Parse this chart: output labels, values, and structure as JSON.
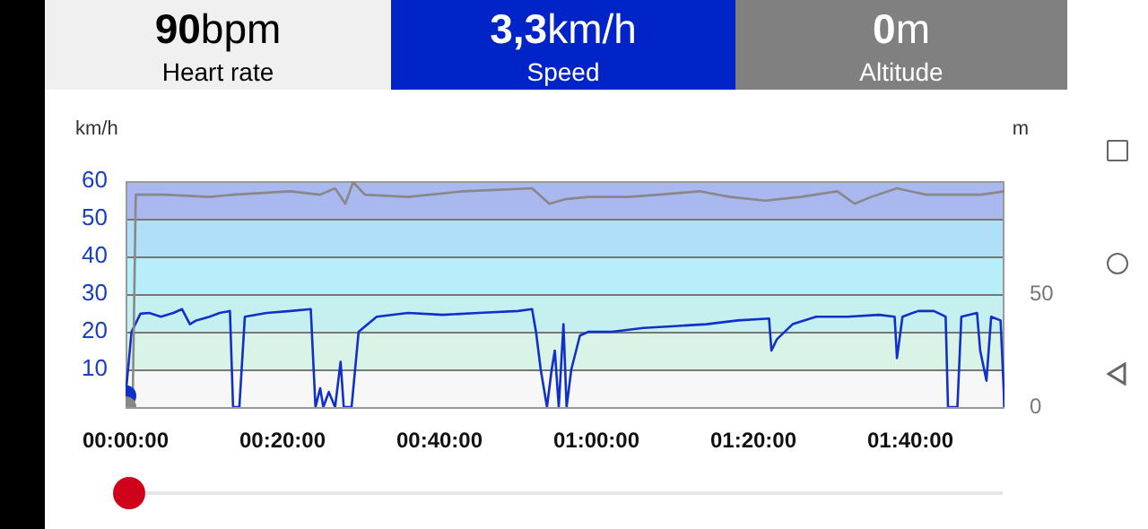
{
  "chart_data": [
    {
      "type": "other",
      "title": "Heart rate",
      "annotations": [
        "90bpm"
      ],
      "color": "#f0f0f0"
    },
    {
      "type": "other",
      "title": "Speed",
      "annotations": [
        "3,3km/h"
      ],
      "color": "#0024c8"
    },
    {
      "type": "other",
      "title": "Altitude",
      "annotations": [
        "0m"
      ],
      "color": "#808080"
    },
    {
      "type": "line",
      "ylabel": "km/h",
      "y2label": "m",
      "xlim": [
        0,
        112
      ],
      "xticks": [
        {
          "value": 0,
          "label": "00:00:00"
        },
        {
          "value": 20,
          "label": "00:20:00"
        },
        {
          "value": 40,
          "label": "00:40:00"
        },
        {
          "value": 60,
          "label": "01:00:00"
        },
        {
          "value": 80,
          "label": "01:20:00"
        },
        {
          "value": 100,
          "label": "01:40:00"
        }
      ],
      "ylim": [
        0,
        60
      ],
      "yticks": [
        10,
        20,
        30,
        40,
        50,
        60
      ],
      "y2lim": [
        0,
        100
      ],
      "y2ticks": [
        0,
        50
      ],
      "grid": "y",
      "legend": false,
      "bands": [
        {
          "axis": "y",
          "from": 0,
          "to": 10,
          "color": "#f7f7f7"
        },
        {
          "axis": "y",
          "from": 10,
          "to": 20,
          "color": "#d9f3e7"
        },
        {
          "axis": "y",
          "from": 20,
          "to": 30,
          "color": "#c6f0ef"
        },
        {
          "axis": "y",
          "from": 30,
          "to": 40,
          "color": "#b8eef9"
        },
        {
          "axis": "y",
          "from": 40,
          "to": 50,
          "color": "#b0e0f8"
        },
        {
          "axis": "y",
          "from": 50,
          "to": 60,
          "color": "#aab8f0"
        }
      ],
      "series": [
        {
          "type": "line",
          "axis": "y2",
          "color": "#888888",
          "marker": "none",
          "x": [
            0,
            0.9,
            1.3,
            5,
            10.7,
            13.7,
            21,
            24.8,
            26.7,
            28,
            29,
            30.5,
            36,
            43,
            51.8,
            54,
            56,
            59,
            64,
            68,
            73.1,
            77,
            81.5,
            86,
            90.7,
            92.9,
            95,
            98.3,
            102,
            105.9,
            109,
            112
          ],
          "values": [
            0,
            0,
            94,
            94,
            93,
            94,
            95.5,
            94,
            96.8,
            90,
            99.5,
            94,
            93,
            95.5,
            96.8,
            90,
            92,
            93,
            93,
            94,
            95.5,
            93,
            91.4,
            93,
            95.5,
            90,
            93,
            96.8,
            94,
            94,
            94,
            95.5
          ]
        },
        {
          "type": "line",
          "axis": "y",
          "color": "#1030c8",
          "marker": "none",
          "x": [
            0,
            0.76,
            1.9,
            3,
            4.5,
            6.1,
            7.2,
            8.2,
            9,
            10.7,
            12,
            13.3,
            13.7,
            14.5,
            15.2,
            18,
            21,
            23.6,
            24.2,
            24.8,
            25.2,
            25.9,
            26.7,
            27.4,
            27.8,
            28.8,
            29.7,
            32,
            36,
            40.4,
            45,
            50,
            51.8,
            52.3,
            52.9,
            53.7,
            54.3,
            54.7,
            55.2,
            55.8,
            56.2,
            56.8,
            57.9,
            59,
            62,
            66,
            70,
            74,
            78,
            82,
            82.3,
            83,
            85,
            88,
            92,
            96,
            98,
            98.3,
            99,
            101,
            103,
            104.5,
            104.8,
            106,
            106.5,
            108.5,
            108.9,
            109.7,
            110.3,
            111.5,
            112
          ],
          "values": [
            3,
            20,
            24.8,
            25,
            24,
            25,
            26,
            22,
            23,
            24,
            25,
            25.5,
            0,
            0,
            24,
            25,
            25.5,
            26,
            0,
            5,
            0,
            4,
            0,
            12,
            0,
            0,
            20,
            24,
            25,
            24.5,
            25,
            25.5,
            26,
            20,
            10,
            0,
            10,
            15,
            0,
            22,
            0,
            10,
            19,
            20,
            20,
            21,
            21.5,
            22,
            23,
            23.5,
            15,
            18,
            22,
            24,
            24,
            24.5,
            24,
            13,
            24,
            25.5,
            25.5,
            24,
            0,
            0,
            24,
            25,
            15,
            7,
            24,
            23,
            0
          ]
        },
        {
          "type": "scatter",
          "axis": "y2",
          "color": "#888888",
          "marker": "circle",
          "x": [
            0
          ],
          "values": [
            0
          ]
        },
        {
          "type": "scatter",
          "axis": "y",
          "color": "#1030c8",
          "marker": "circle",
          "x": [
            0
          ],
          "values": [
            3
          ]
        }
      ]
    }
  ]
}
